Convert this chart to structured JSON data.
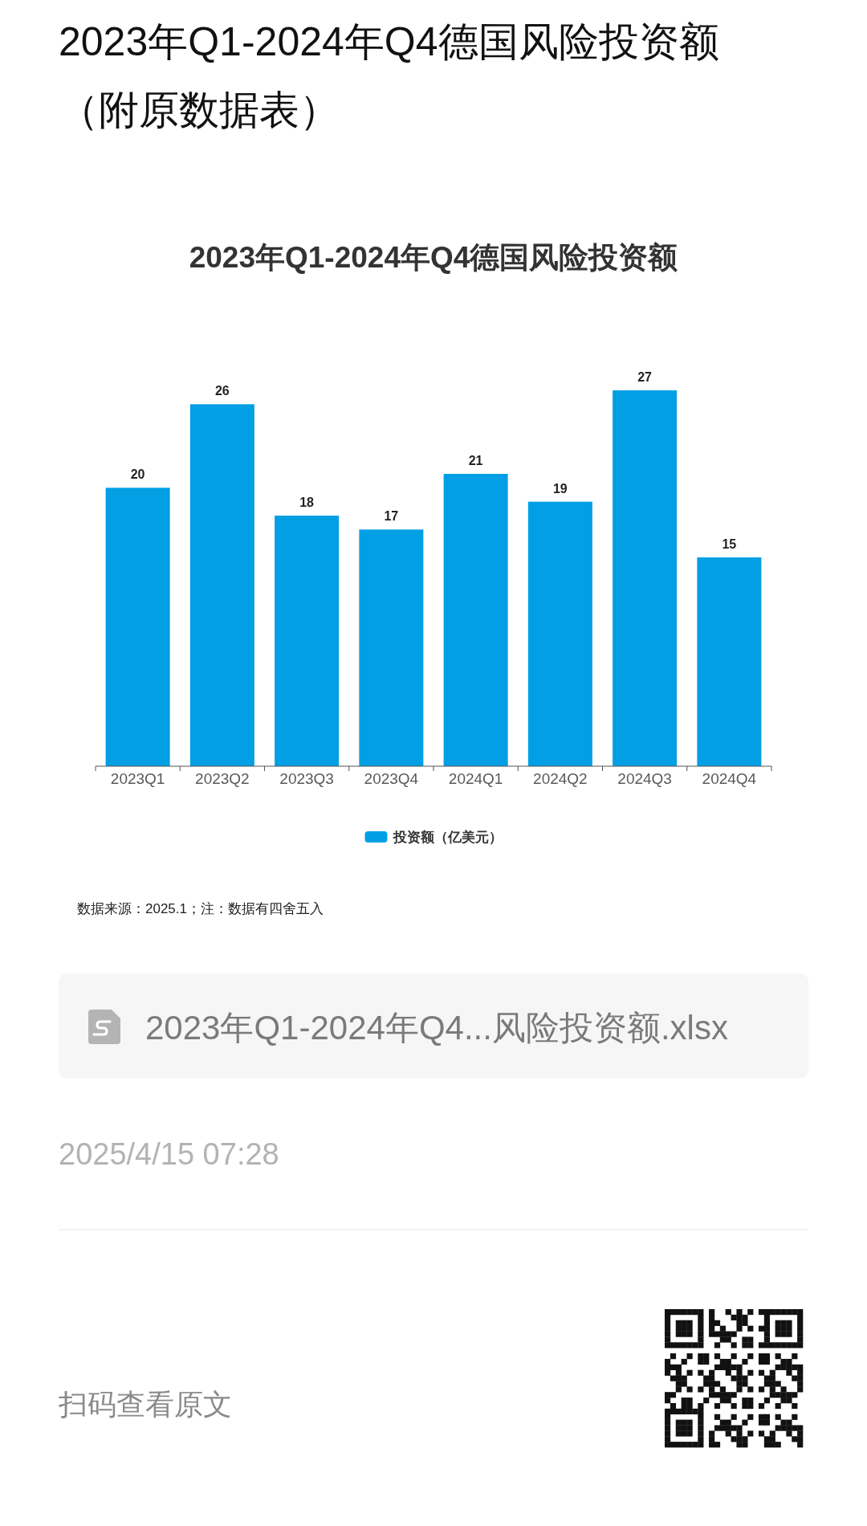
{
  "chart_data": {
    "type": "bar",
    "title": "2023年Q1-2024年Q4德国风险投资额（附原数据表）",
    "subtitle": "2023年Q1-2024年Q4德国风险投资额",
    "categories": [
      "2023Q1",
      "2023Q2",
      "2023Q3",
      "2023Q4",
      "2024Q1",
      "2024Q2",
      "2024Q3",
      "2024Q4"
    ],
    "series": [
      {
        "name": "投资额（亿美元）",
        "color": "#039fe4",
        "values": [
          20,
          26,
          18,
          17,
          21,
          19,
          27,
          15
        ]
      }
    ],
    "data_labels": true,
    "legend": "bottom",
    "tick_labels": "x",
    "annotations": [
      "数据来源：2025.1；注：数据有四舍五入",
      "2023年Q1-2024年Q4...风险投资额.xlsx",
      "2025/4/15 07:28",
      "扫码查看原文"
    ]
  }
}
